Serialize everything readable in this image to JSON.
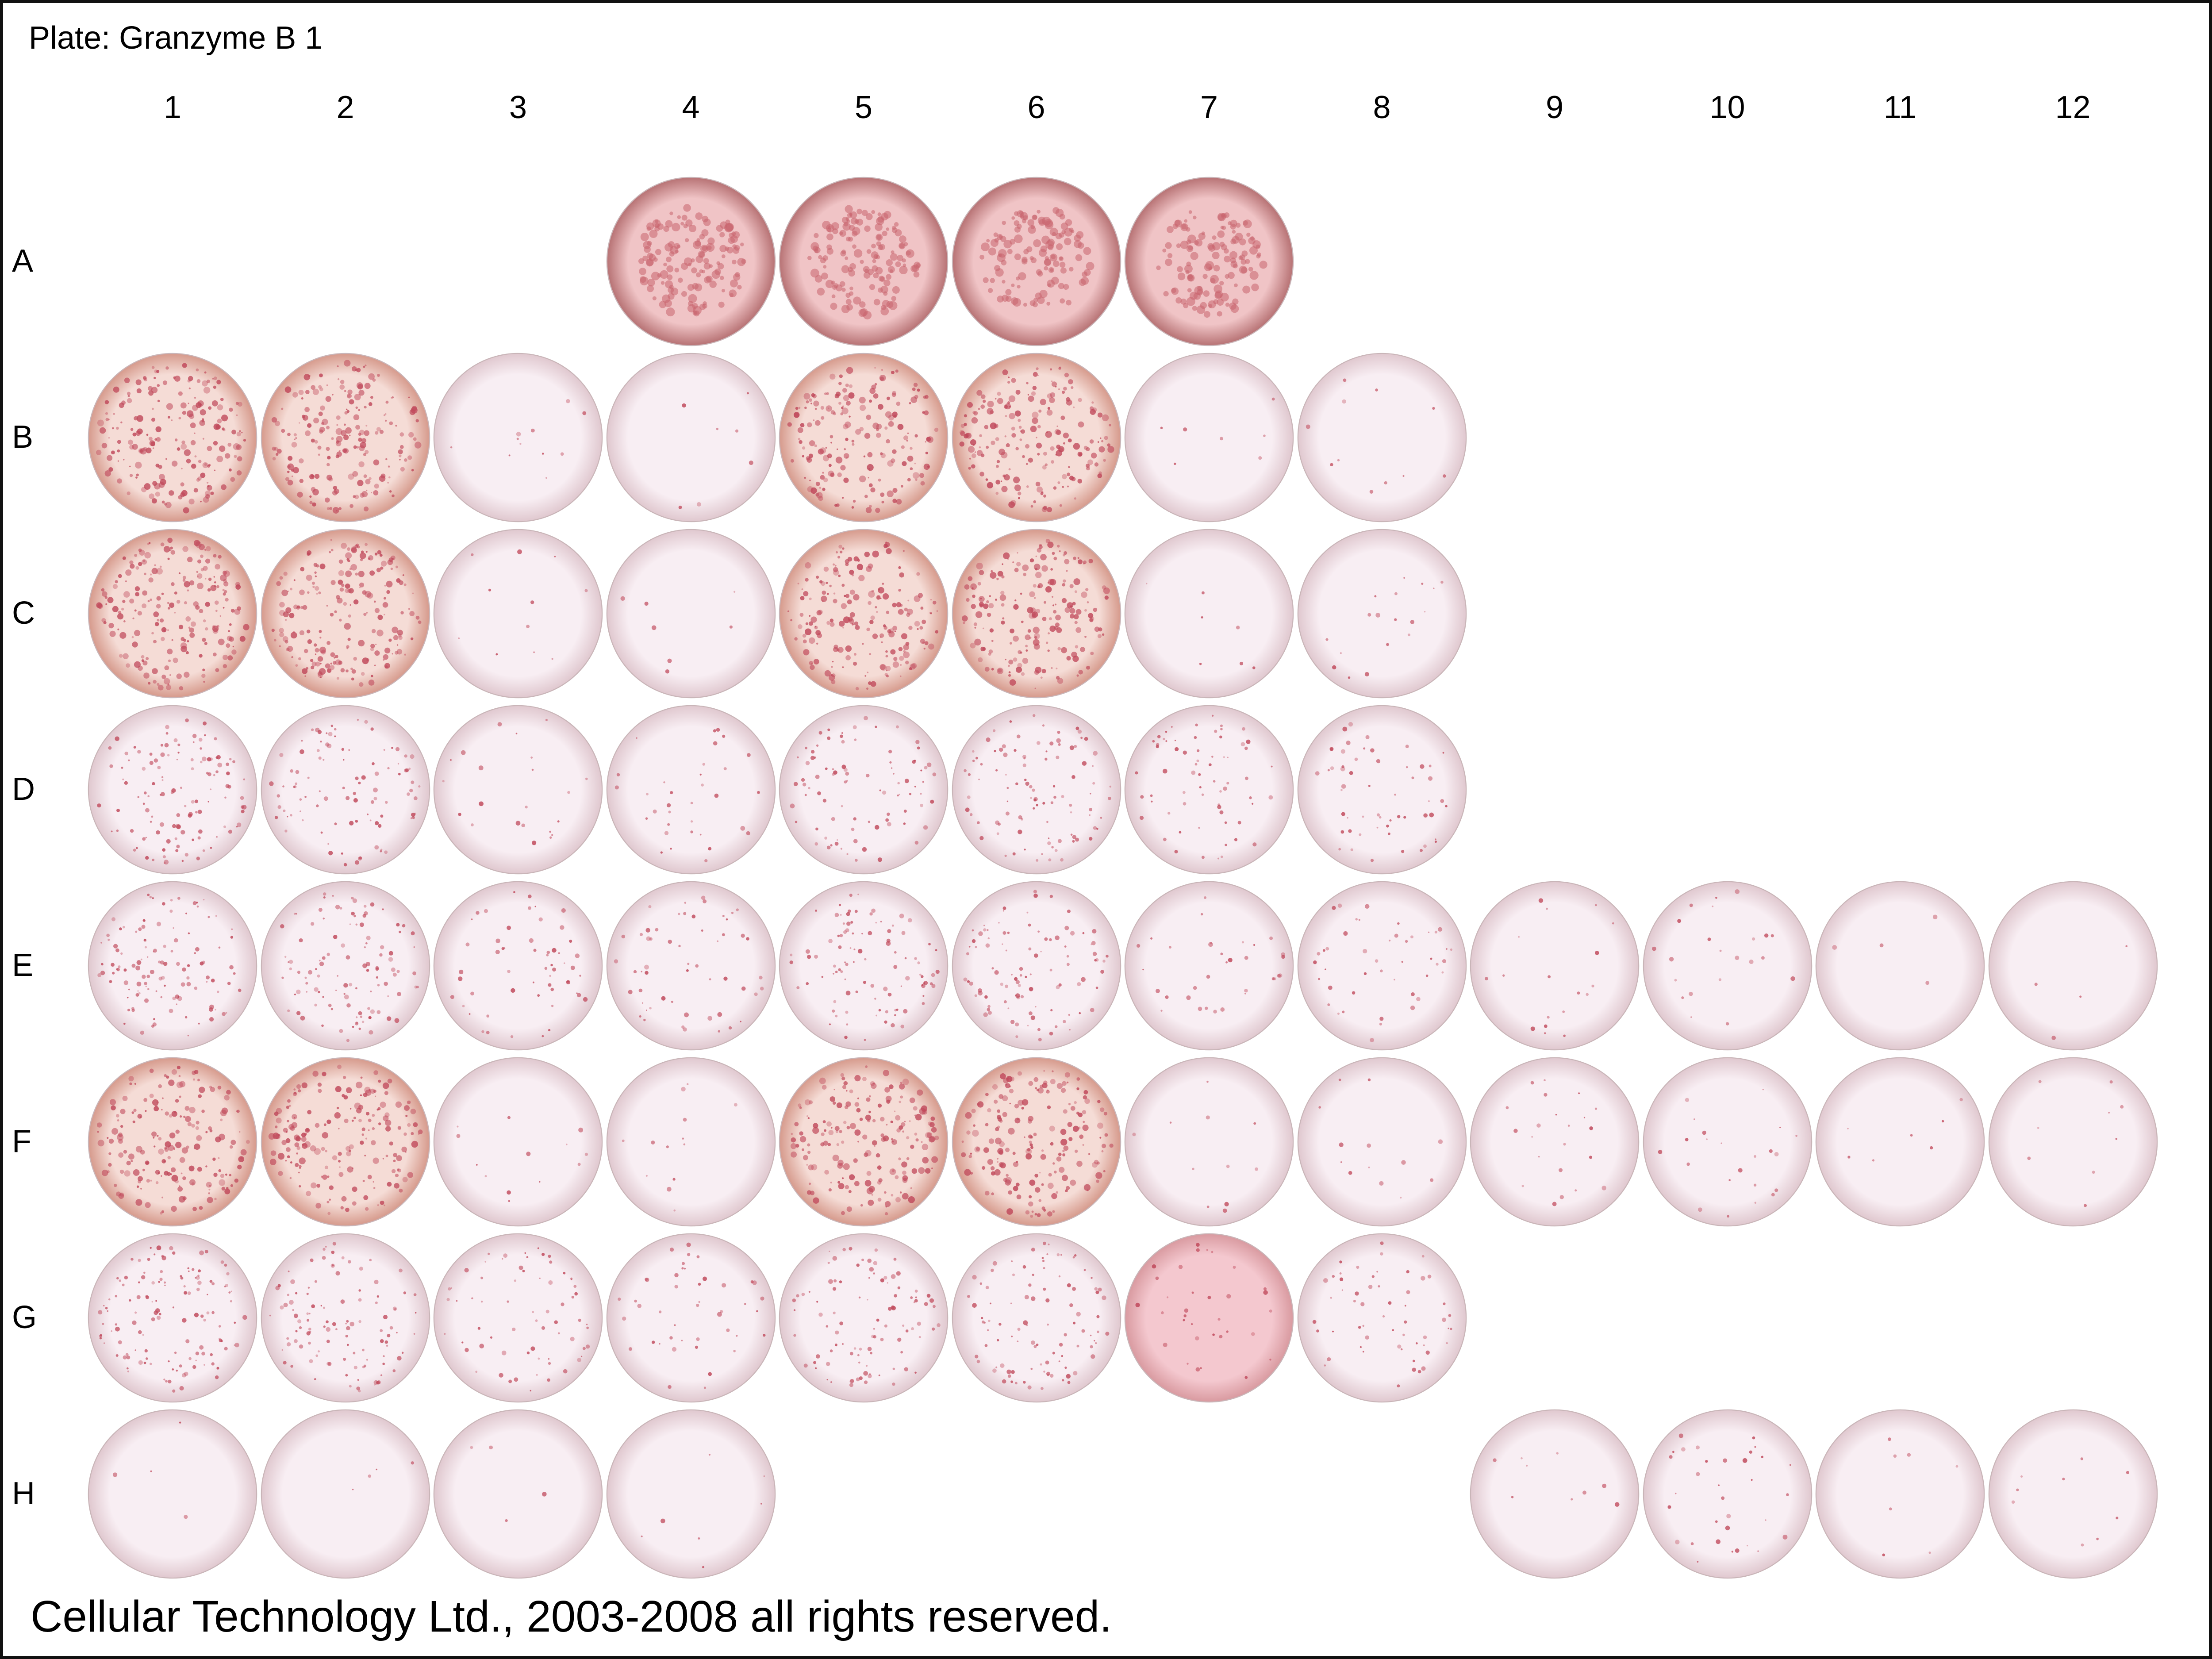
{
  "plate": {
    "title": "Plate: Granzyme B 1"
  },
  "columns": [
    "1",
    "2",
    "3",
    "4",
    "5",
    "6",
    "7",
    "8",
    "9",
    "10",
    "11",
    "12"
  ],
  "rows": [
    "A",
    "B",
    "C",
    "D",
    "E",
    "F",
    "G",
    "H"
  ],
  "footer": "Cellular Technology Ltd., 2003-2008 all rights reserved.",
  "colors": {
    "dense_base": "#e9b9a8",
    "light_base": "#f3e3ea",
    "spot": "#c0485a",
    "dark_well": "#c7837f",
    "frame": "#111111"
  },
  "wells": [
    {
      "id": "A4",
      "density": 0.9,
      "type": "dark"
    },
    {
      "id": "A5",
      "density": 0.9,
      "type": "dark"
    },
    {
      "id": "A6",
      "density": 0.8,
      "type": "dark"
    },
    {
      "id": "A7",
      "density": 0.8,
      "type": "dark"
    },
    {
      "id": "B1",
      "density": 0.9
    },
    {
      "id": "B2",
      "density": 0.9
    },
    {
      "id": "B3",
      "density": 0.05
    },
    {
      "id": "B4",
      "density": 0.03
    },
    {
      "id": "B5",
      "density": 0.85
    },
    {
      "id": "B6",
      "density": 0.9
    },
    {
      "id": "B7",
      "density": 0.03
    },
    {
      "id": "B8",
      "density": 0.05
    },
    {
      "id": "C1",
      "density": 0.95
    },
    {
      "id": "C2",
      "density": 0.95
    },
    {
      "id": "C3",
      "density": 0.05
    },
    {
      "id": "C4",
      "density": 0.03
    },
    {
      "id": "C5",
      "density": 0.9
    },
    {
      "id": "C6",
      "density": 0.9
    },
    {
      "id": "C7",
      "density": 0.03
    },
    {
      "id": "C8",
      "density": 0.08
    },
    {
      "id": "D1",
      "density": 0.55
    },
    {
      "id": "D2",
      "density": 0.45
    },
    {
      "id": "D3",
      "density": 0.1
    },
    {
      "id": "D4",
      "density": 0.15
    },
    {
      "id": "D5",
      "density": 0.4
    },
    {
      "id": "D6",
      "density": 0.45
    },
    {
      "id": "D7",
      "density": 0.3
    },
    {
      "id": "D8",
      "density": 0.25
    },
    {
      "id": "E1",
      "density": 0.55
    },
    {
      "id": "E2",
      "density": 0.5
    },
    {
      "id": "E3",
      "density": 0.25
    },
    {
      "id": "E4",
      "density": 0.25
    },
    {
      "id": "E5",
      "density": 0.45
    },
    {
      "id": "E6",
      "density": 0.45
    },
    {
      "id": "E7",
      "density": 0.15
    },
    {
      "id": "E8",
      "density": 0.2
    },
    {
      "id": "E9",
      "density": 0.08
    },
    {
      "id": "E10",
      "density": 0.1
    },
    {
      "id": "E11",
      "density": 0.02
    },
    {
      "id": "E12",
      "density": 0.02
    },
    {
      "id": "F1",
      "density": 0.85
    },
    {
      "id": "F2",
      "density": 0.85
    },
    {
      "id": "F3",
      "density": 0.06
    },
    {
      "id": "F4",
      "density": 0.06
    },
    {
      "id": "F5",
      "density": 0.85
    },
    {
      "id": "F6",
      "density": 0.85
    },
    {
      "id": "F7",
      "density": 0.05
    },
    {
      "id": "F8",
      "density": 0.06
    },
    {
      "id": "F9",
      "density": 0.1
    },
    {
      "id": "F10",
      "density": 0.1
    },
    {
      "id": "F11",
      "density": 0.03
    },
    {
      "id": "F12",
      "density": 0.04
    },
    {
      "id": "G1",
      "density": 0.6
    },
    {
      "id": "G2",
      "density": 0.5
    },
    {
      "id": "G3",
      "density": 0.3
    },
    {
      "id": "G4",
      "density": 0.2
    },
    {
      "id": "G5",
      "density": 0.45
    },
    {
      "id": "G6",
      "density": 0.45
    },
    {
      "id": "G7",
      "density": 0.15,
      "type": "pink"
    },
    {
      "id": "G8",
      "density": 0.25
    },
    {
      "id": "H1",
      "density": 0.02
    },
    {
      "id": "H2",
      "density": 0.02
    },
    {
      "id": "H3",
      "density": 0.02
    },
    {
      "id": "H4",
      "density": 0.03
    },
    {
      "id": "H9",
      "density": 0.04
    },
    {
      "id": "H10",
      "density": 0.15
    },
    {
      "id": "H11",
      "density": 0.03
    },
    {
      "id": "H12",
      "density": 0.04
    }
  ]
}
